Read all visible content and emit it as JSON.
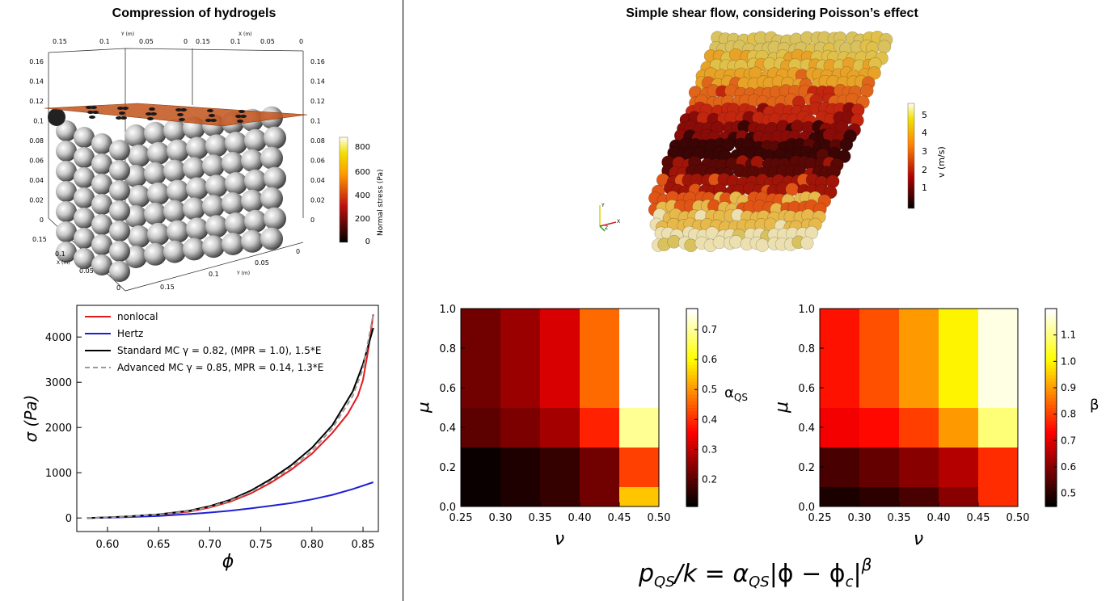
{
  "titles": {
    "left": "Compression of hydrogels",
    "right": "Simple shear flow, considering Poisson’s effect"
  },
  "colors": {
    "nonlocal": "#e31a1c",
    "hertz": "#1f1fd6",
    "standard": "#000000",
    "advanced": "#999999"
  },
  "render3d": {
    "left": {
      "top_axis_left": {
        "label": "Y (m)",
        "ticks": [
          "0.15",
          "0.1",
          "0.05",
          "0"
        ]
      },
      "top_axis_right": {
        "label": "X (m)",
        "ticks": [
          "0.15",
          "0.1",
          "0.05",
          "0"
        ]
      },
      "left_axis_ticks": [
        "0.16",
        "0.14",
        "0.12",
        "0.1",
        "0.08",
        "0.06",
        "0.04",
        "0.02",
        "0"
      ],
      "right_axis_ticks": [
        "0.16",
        "0.14",
        "0.12",
        "0.1",
        "0.08",
        "0.06",
        "0.04",
        "0.02",
        "0"
      ],
      "bottom_axis_left": {
        "label": "X (m)",
        "ticks": [
          "0.15",
          "0.1",
          "0.05",
          "0"
        ]
      },
      "bottom_axis_right": {
        "label": "Y (m)",
        "ticks": [
          "0.15",
          "0.1",
          "0.05",
          "0"
        ]
      },
      "colorbar": {
        "label": "Normal stress (Pa)",
        "ticks": [
          "800",
          "600",
          "400",
          "200",
          "0"
        ]
      }
    },
    "right": {
      "colorbar": {
        "label": "v (m/s)",
        "ticks": [
          "5",
          "4",
          "3",
          "2",
          "1"
        ]
      },
      "triad": {
        "y": "Y",
        "x": "X",
        "z": "Z"
      }
    }
  },
  "chart_data": [
    {
      "type": "line",
      "xlabel": "ϕ",
      "ylabel": "σ (Pa)",
      "xlim": [
        0.57,
        0.865
      ],
      "ylim": [
        -300,
        4700
      ],
      "xticks": [
        0.6,
        0.65,
        0.7,
        0.75,
        0.8,
        0.85
      ],
      "xtick_labels": [
        "0.60",
        "0.65",
        "0.70",
        "0.75",
        "0.80",
        "0.85"
      ],
      "yticks": [
        0,
        1000,
        2000,
        3000,
        4000
      ],
      "ytick_labels": [
        "0",
        "1000",
        "2000",
        "3000",
        "4000"
      ],
      "legend_position": "top-left",
      "series": [
        {
          "name": "nonlocal",
          "color_key": "nonlocal",
          "dash": false,
          "x": [
            0.58,
            0.6,
            0.62,
            0.65,
            0.68,
            0.7,
            0.72,
            0.74,
            0.76,
            0.78,
            0.8,
            0.82,
            0.835,
            0.845,
            0.85,
            0.855,
            0.86
          ],
          "y": [
            0,
            10,
            30,
            70,
            140,
            230,
            360,
            540,
            780,
            1070,
            1420,
            1880,
            2300,
            2700,
            3050,
            3700,
            4500
          ]
        },
        {
          "name": "Hertz",
          "color_key": "hertz",
          "dash": false,
          "x": [
            0.58,
            0.6,
            0.62,
            0.65,
            0.68,
            0.7,
            0.72,
            0.74,
            0.76,
            0.78,
            0.8,
            0.82,
            0.84,
            0.86
          ],
          "y": [
            0,
            5,
            20,
            45,
            85,
            120,
            160,
            210,
            270,
            330,
            410,
            510,
            640,
            790
          ]
        },
        {
          "name": "Standard MC γ = 0.82, (MPR = 1.0), 1.5*E",
          "color_key": "standard",
          "dash": false,
          "x": [
            0.58,
            0.6,
            0.62,
            0.65,
            0.68,
            0.7,
            0.72,
            0.74,
            0.76,
            0.78,
            0.8,
            0.82,
            0.84,
            0.85,
            0.86
          ],
          "y": [
            0,
            12,
            35,
            80,
            160,
            260,
            400,
            600,
            860,
            1170,
            1550,
            2050,
            2800,
            3400,
            4200
          ]
        },
        {
          "name": "Advanced MC γ = 0.85, MPR = 0.14, 1.3*E",
          "color_key": "advanced",
          "dash": true,
          "x": [
            0.58,
            0.6,
            0.62,
            0.65,
            0.68,
            0.7,
            0.72,
            0.74,
            0.76,
            0.78,
            0.8,
            0.82,
            0.84,
            0.85,
            0.86
          ],
          "y": [
            0,
            11,
            32,
            75,
            150,
            245,
            380,
            570,
            820,
            1120,
            1480,
            1980,
            2700,
            3300,
            4500
          ]
        }
      ]
    },
    {
      "type": "heatmap",
      "xlabel": "ν",
      "ylabel": "μ",
      "xticks": [
        "0.25",
        "0.30",
        "0.35",
        "0.40",
        "0.45",
        "0.50"
      ],
      "yticks": [
        "0.0",
        "0.2",
        "0.4",
        "0.6",
        "0.8",
        "1.0"
      ],
      "x_edges": [
        0.25,
        0.3,
        0.35,
        0.4,
        0.45,
        0.5
      ],
      "y_edges": [
        0.0,
        0.1,
        0.3,
        0.5,
        1.0
      ],
      "colormap": "hot",
      "vmin": 0.11,
      "vmax": 0.77,
      "colorbar_label": "α",
      "colorbar_label_sub": "QS",
      "colorbar_ticks": [
        "0.2",
        "0.3",
        "0.4",
        "0.5",
        "0.6",
        "0.7"
      ],
      "colorbar_values": [
        0.2,
        0.3,
        0.4,
        0.5,
        0.6,
        0.7
      ],
      "rows": [
        [
          0.12,
          0.14,
          0.16,
          0.22,
          0.55
        ],
        [
          0.12,
          0.14,
          0.16,
          0.22,
          0.42
        ],
        [
          0.2,
          0.23,
          0.27,
          0.39,
          0.7
        ],
        [
          0.22,
          0.26,
          0.32,
          0.46,
          0.77
        ]
      ]
    },
    {
      "type": "heatmap",
      "xlabel": "ν",
      "ylabel": "μ",
      "xticks": [
        "0.25",
        "0.30",
        "0.35",
        "0.40",
        "0.45",
        "0.50"
      ],
      "yticks": [
        "0.0",
        "0.2",
        "0.4",
        "0.6",
        "0.8",
        "1.0"
      ],
      "x_edges": [
        0.25,
        0.3,
        0.35,
        0.4,
        0.45,
        0.5
      ],
      "y_edges": [
        0.0,
        0.1,
        0.3,
        0.5,
        1.0
      ],
      "colormap": "hot",
      "vmin": 0.45,
      "vmax": 1.2,
      "colorbar_label": "β",
      "colorbar_label_sub": "",
      "colorbar_ticks": [
        "0.5",
        "0.6",
        "0.7",
        "0.8",
        "0.9",
        "1.0",
        "1.1"
      ],
      "colorbar_values": [
        0.5,
        0.6,
        0.7,
        0.8,
        0.9,
        1.0,
        1.1
      ],
      "rows": [
        [
          0.48,
          0.5,
          0.53,
          0.6,
          0.78
        ],
        [
          0.53,
          0.56,
          0.6,
          0.65,
          0.78
        ],
        [
          0.72,
          0.74,
          0.8,
          0.9,
          1.1
        ],
        [
          0.75,
          0.82,
          0.9,
          1.0,
          1.18
        ]
      ]
    }
  ]
}
